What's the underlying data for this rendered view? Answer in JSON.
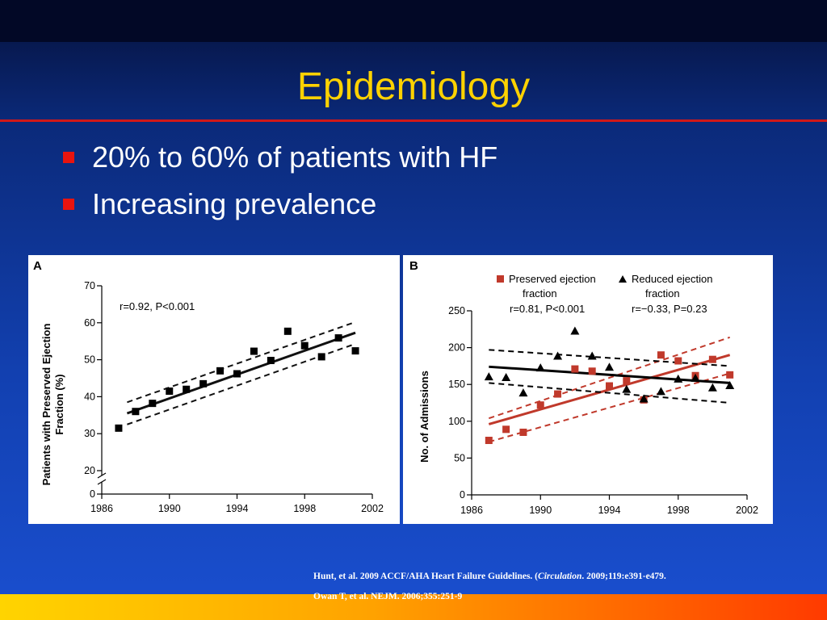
{
  "slide": {
    "title": "Epidemiology",
    "bullets": [
      "20% to 60% of patients with HF",
      "Increasing prevalence"
    ],
    "citation": {
      "line1_pre": "Hunt, et al. 2009 ACCF/AHA Heart Failure Guidelines. (",
      "line1_journal": "Circulation",
      "line1_post": ". 2009;119:e391-e479.",
      "line2": "Owan T, et al. NEJM. 2006;355:251-9"
    }
  },
  "colors": {
    "title": "#ffd200",
    "bullet_marker": "#e8140f",
    "divider": "#d11818",
    "preserved": "#c0392b",
    "reduced": "#000000"
  },
  "chart_data": [
    {
      "panel_label": "A",
      "type": "scatter",
      "xlabel": "",
      "ylabel": "Patients with Preserved Ejection Fraction (%)",
      "ylabel_lines": [
        "Patients with Preserved Ejection",
        "Fraction (%)"
      ],
      "xlim": [
        1986,
        2002
      ],
      "ylim": [
        0,
        70
      ],
      "y_axis_break": true,
      "x_ticks": [
        1986,
        1990,
        1994,
        1998,
        2002
      ],
      "y_ticks": [
        0,
        20,
        30,
        40,
        50,
        60,
        70
      ],
      "annotation": "r=0.92, P<0.001",
      "series": [
        {
          "marker": "square",
          "x": [
            1987,
            1988,
            1989,
            1990,
            1991,
            1992,
            1993,
            1994,
            1995,
            1996,
            1997,
            1998,
            1999,
            2000,
            2001
          ],
          "y": [
            31.5,
            36,
            38.2,
            41.5,
            42,
            43.5,
            47,
            46.2,
            52.3,
            49.8,
            57.7,
            53.8,
            50.8,
            55.9,
            52.4
          ]
        }
      ],
      "fit": {
        "x": [
          1987.5,
          2001
        ],
        "y": [
          35.5,
          57.3
        ]
      },
      "ci_upper": {
        "x": [
          1987.5,
          2001
        ],
        "y": [
          38.5,
          60.2
        ]
      },
      "ci_lower": {
        "x": [
          1987.5,
          2001
        ],
        "y": [
          32.5,
          54.3
        ]
      }
    },
    {
      "panel_label": "B",
      "type": "scatter",
      "xlabel": "",
      "ylabel": "No. of Admissions",
      "xlim": [
        1986,
        2002
      ],
      "ylim": [
        0,
        250
      ],
      "x_ticks": [
        1986,
        1990,
        1994,
        1998,
        2002
      ],
      "y_ticks": [
        0,
        50,
        100,
        150,
        200,
        250
      ],
      "legend": [
        {
          "marker": "square",
          "lines": [
            "Preserved ejection",
            "fraction"
          ],
          "stat": "r=0.81, P<0.001"
        },
        {
          "marker": "triangle",
          "lines": [
            "Reduced ejection",
            "fraction"
          ],
          "stat": "r=−0.33, P=0.23"
        }
      ],
      "series": [
        {
          "name": "Preserved ejection fraction",
          "marker": "square",
          "x": [
            1987,
            1988,
            1989,
            1990,
            1991,
            1992,
            1993,
            1994,
            1995,
            1996,
            1997,
            1998,
            1999,
            2000,
            2001
          ],
          "y": [
            74,
            89,
            85,
            122,
            137,
            171,
            168,
            148,
            155,
            129,
            190,
            182,
            162,
            184,
            163
          ],
          "fit": {
            "x": [
              1987,
              2001
            ],
            "y": [
              96,
              190
            ]
          },
          "ci_upper": {
            "x": [
              1987,
              2001
            ],
            "y": [
              104,
              214
            ]
          },
          "ci_lower": {
            "x": [
              1987,
              2001
            ],
            "y": [
              72,
              165
            ]
          }
        },
        {
          "name": "Reduced ejection fraction",
          "marker": "triangle",
          "x": [
            1987,
            1988,
            1989,
            1990,
            1991,
            1992,
            1993,
            1994,
            1995,
            1996,
            1997,
            1998,
            1999,
            2000,
            2001
          ],
          "y": [
            160,
            159,
            138,
            172,
            188,
            222,
            188,
            173,
            143,
            130,
            140,
            157,
            158,
            145,
            148
          ],
          "fit": {
            "x": [
              1987,
              2001
            ],
            "y": [
              174,
              152
            ]
          },
          "ci_upper": {
            "x": [
              1987,
              2001
            ],
            "y": [
              197,
              175
            ]
          },
          "ci_lower": {
            "x": [
              1987,
              2001
            ],
            "y": [
              152,
              125
            ]
          }
        }
      ]
    }
  ]
}
